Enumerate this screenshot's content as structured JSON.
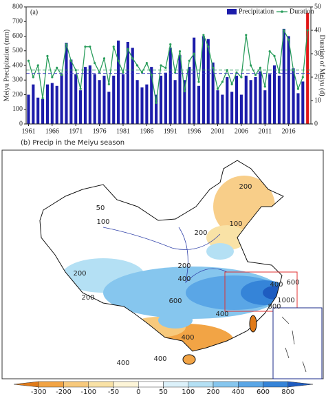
{
  "chart_data": {
    "type": "bar",
    "panel_label": "(a)",
    "y_label": "Meiyu Precipitation (mm)",
    "y2_label": "Duration of Meiyu (d)",
    "x": [
      1961,
      1962,
      1963,
      1964,
      1965,
      1966,
      1967,
      1968,
      1969,
      1970,
      1971,
      1972,
      1973,
      1974,
      1975,
      1976,
      1977,
      1978,
      1979,
      1980,
      1981,
      1982,
      1983,
      1984,
      1985,
      1986,
      1987,
      1988,
      1989,
      1990,
      1991,
      1992,
      1993,
      1994,
      1995,
      1996,
      1997,
      1998,
      1999,
      2000,
      2001,
      2002,
      2003,
      2004,
      2005,
      2006,
      2007,
      2008,
      2009,
      2010,
      2011,
      2012,
      2013,
      2014,
      2015,
      2016,
      2017,
      2018,
      2019,
      2020
    ],
    "series": [
      {
        "name": "Precipitation",
        "type": "bar",
        "color": "#1c1caa",
        "values": [
          200,
          270,
          180,
          170,
          270,
          280,
          260,
          340,
          555,
          440,
          340,
          230,
          390,
          400,
          340,
          300,
          330,
          220,
          330,
          570,
          340,
          560,
          520,
          300,
          250,
          270,
          390,
          200,
          330,
          350,
          520,
          300,
          470,
          300,
          390,
          590,
          260,
          600,
          580,
          420,
          230,
          200,
          320,
          220,
          330,
          200,
          330,
          300,
          320,
          360,
          230,
          340,
          400,
          330,
          650,
          600,
          380,
          210,
          290,
          759
        ]
      },
      {
        "name": "Duration",
        "type": "line",
        "axis": "y2",
        "color": "#2a9d5c",
        "values": [
          27,
          20,
          25,
          11,
          29,
          20,
          24,
          21,
          34,
          27,
          23,
          15,
          33,
          33,
          26,
          22,
          28,
          17,
          33,
          27,
          22,
          32,
          28,
          25,
          22,
          26,
          21,
          9,
          25,
          24,
          34,
          22,
          31,
          14,
          27,
          30,
          18,
          38,
          33,
          24,
          15,
          18,
          23,
          17,
          22,
          20,
          38,
          25,
          21,
          24,
          16,
          31,
          29,
          22,
          40,
          36,
          23,
          15,
          20,
          40
        ]
      }
    ],
    "highlight": {
      "x": 2020,
      "color": "#e01515"
    },
    "hlines": [
      {
        "axis": "y",
        "value": 345,
        "color": "#3a3ac0"
      },
      {
        "axis": "y2",
        "value": 23,
        "color": "#2a9d5c"
      }
    ],
    "xlim": [
      1960.5,
      2020.7
    ],
    "xticks": [
      1961,
      1966,
      1971,
      1976,
      1981,
      1986,
      1991,
      1996,
      2001,
      2006,
      2011,
      2016
    ],
    "ylim": [
      0,
      800
    ],
    "yticks": [
      0,
      100,
      200,
      300,
      400,
      500,
      600,
      700,
      800
    ],
    "y2lim": [
      0,
      50
    ],
    "y2ticks": [
      0,
      10,
      20,
      30,
      40,
      50
    ],
    "legend": "upper right"
  },
  "map": {
    "title": "(b) Precip in the Meiyu season",
    "contour_labels": [
      200,
      100,
      200,
      50,
      100,
      200,
      400,
      600,
      800,
      1000,
      400,
      600,
      400,
      400,
      200,
      200,
      400,
      400
    ],
    "colorbar": {
      "ticks": [
        -300,
        -200,
        -100,
        -50,
        0,
        50,
        100,
        200,
        400,
        600,
        800
      ],
      "colors": [
        "#e07a18",
        "#f2a445",
        "#f7c97c",
        "#f9e2a6",
        "#fdf5d8",
        "#ffffff",
        "#dcf1fa",
        "#b4e0f4",
        "#86c6ee",
        "#5aa6e6",
        "#3584d8",
        "#1e5cc0"
      ]
    }
  }
}
